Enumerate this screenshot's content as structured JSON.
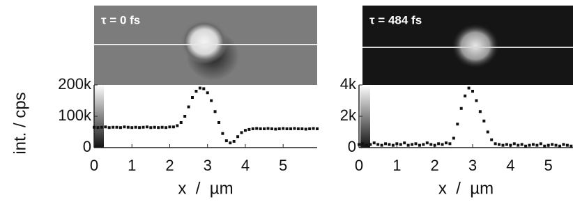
{
  "chart_data": [
    {
      "type": "scatter",
      "annotation": "τ = 0 fs",
      "y_label": "int. / cps",
      "x_label": "x  /  µm",
      "color": "#111111",
      "xlim": [
        0,
        5.9
      ],
      "ylim": [
        0,
        200000
      ],
      "xticks": [
        0,
        1,
        2,
        3,
        4,
        5
      ],
      "yticks": [
        0,
        {
          "value": 100000,
          "label": "100k"
        },
        {
          "value": 200000,
          "label": "200k"
        }
      ],
      "x": [
        0,
        0.1,
        0.2,
        0.3,
        0.4,
        0.5,
        0.6,
        0.7,
        0.8,
        0.9,
        1,
        1.1,
        1.2,
        1.3,
        1.4,
        1.5,
        1.6,
        1.7,
        1.8,
        1.9,
        2,
        2.1,
        2.2,
        2.3,
        2.4,
        2.5,
        2.6,
        2.7,
        2.8,
        2.9,
        3,
        3.1,
        3.2,
        3.3,
        3.4,
        3.5,
        3.6,
        3.7,
        3.8,
        3.9,
        4,
        4.1,
        4.2,
        4.3,
        4.4,
        4.5,
        4.6,
        4.7,
        4.8,
        4.9,
        5,
        5.1,
        5.2,
        5.3,
        5.4,
        5.5,
        5.6,
        5.7,
        5.8,
        5.9
      ],
      "values": [
        65000,
        64000,
        65000,
        66000,
        64000,
        65000,
        65000,
        64000,
        66000,
        65000,
        64000,
        65000,
        64000,
        65000,
        66000,
        64000,
        65000,
        64000,
        65000,
        64000,
        66000,
        66000,
        70000,
        80000,
        100000,
        130000,
        160000,
        180000,
        190000,
        188000,
        175000,
        150000,
        115000,
        80000,
        45000,
        22000,
        15000,
        20000,
        35000,
        48000,
        55000,
        58000,
        60000,
        61000,
        60000,
        60000,
        61000,
        60000,
        59000,
        60000,
        61000,
        60000,
        60000,
        61000,
        60000,
        60000,
        59000,
        60000,
        61000,
        60000
      ]
    },
    {
      "type": "scatter",
      "annotation": "τ = 484 fs",
      "x_label": "x  /  µm",
      "color": "#111111",
      "xlim": [
        0,
        5.65
      ],
      "ylim": [
        0,
        4000
      ],
      "xticks": [
        0,
        1,
        2,
        3,
        4,
        5
      ],
      "yticks": [
        0,
        {
          "value": 2000,
          "label": "2k"
        },
        {
          "value": 4000,
          "label": "4k"
        }
      ],
      "x": [
        0,
        0.1,
        0.2,
        0.3,
        0.4,
        0.5,
        0.6,
        0.7,
        0.8,
        0.9,
        1,
        1.1,
        1.2,
        1.3,
        1.4,
        1.5,
        1.6,
        1.7,
        1.8,
        1.9,
        2,
        2.1,
        2.2,
        2.3,
        2.4,
        2.5,
        2.6,
        2.7,
        2.8,
        2.9,
        3,
        3.1,
        3.2,
        3.3,
        3.4,
        3.5,
        3.6,
        3.7,
        3.8,
        3.9,
        4,
        4.1,
        4.2,
        4.3,
        4.4,
        4.5,
        4.6,
        4.7,
        4.8,
        4.9,
        5,
        5.1,
        5.2,
        5.3,
        5.4,
        5.5,
        5.6
      ],
      "values": [
        200,
        250,
        150,
        200,
        300,
        200,
        150,
        250,
        200,
        150,
        250,
        200,
        300,
        150,
        200,
        250,
        150,
        200,
        300,
        200,
        150,
        250,
        200,
        300,
        250,
        600,
        1500,
        2500,
        3300,
        3800,
        3600,
        3000,
        2300,
        1700,
        1000,
        500,
        250,
        200,
        150,
        200,
        150,
        250,
        150,
        200,
        100,
        150,
        200,
        150,
        250,
        100,
        150,
        200,
        150,
        100,
        200,
        150,
        100
      ]
    }
  ]
}
